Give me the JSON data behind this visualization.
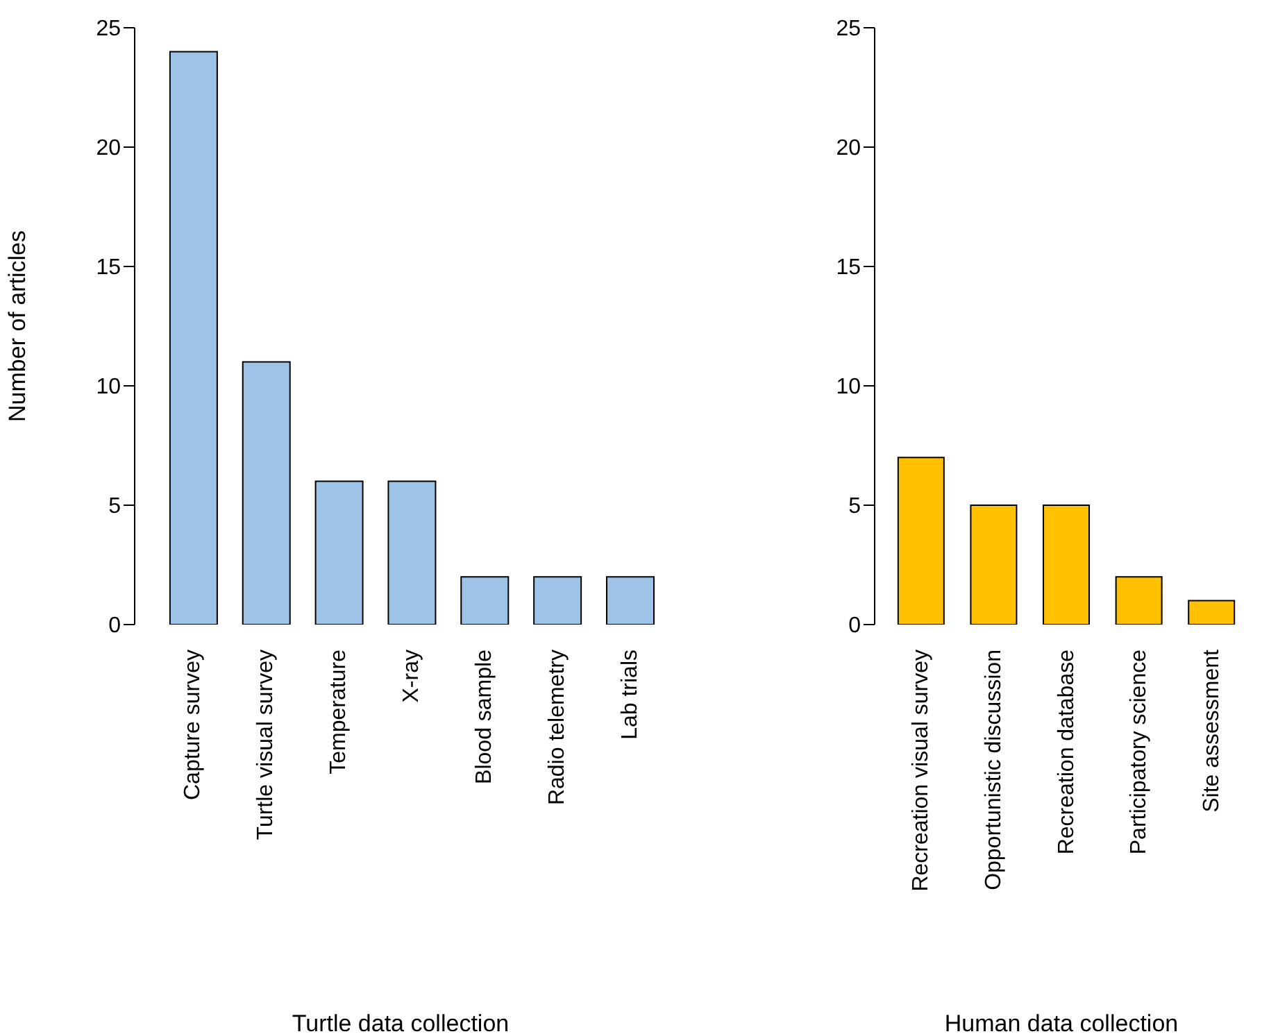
{
  "chart_data": [
    {
      "type": "bar",
      "categories": [
        "Capture survey",
        "Turtle visual survey",
        "Temperature",
        "X-ray",
        "Blood sample",
        "Radio telemetry",
        "Lab trials"
      ],
      "values": [
        24,
        11,
        6,
        6,
        2,
        2,
        2
      ],
      "color": "#9dc3e6",
      "xlabel": "Turtle data collection",
      "ylabel": "Number of articles",
      "ylim": [
        0,
        25
      ],
      "yticks": [
        0,
        5,
        10,
        15,
        20,
        25
      ]
    },
    {
      "type": "bar",
      "categories": [
        "Recreation visual survey",
        "Opportunistic discussion",
        "Recreation database",
        "Participatory science",
        "Site assessment"
      ],
      "values": [
        7,
        5,
        5,
        2,
        1
      ],
      "color": "#ffc000",
      "xlabel": "Human data collection",
      "ylim": [
        0,
        25
      ],
      "yticks": [
        0,
        5,
        10,
        15,
        20,
        25
      ]
    }
  ]
}
